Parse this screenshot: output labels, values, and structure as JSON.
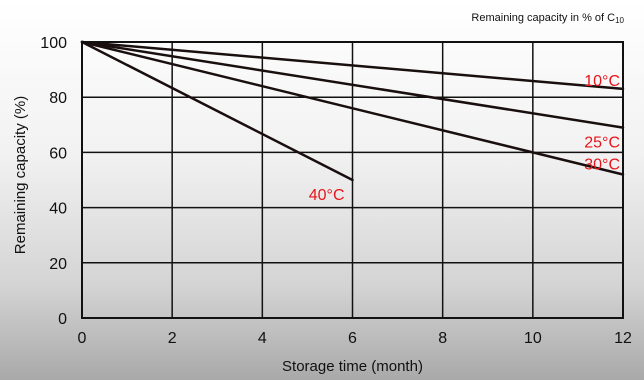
{
  "chart_data": {
    "type": "line",
    "title": "Remaining capacity in % of C10",
    "title_main": "Remaining capacity in % of C",
    "title_subscript": "10",
    "xlabel": "Storage time (month)",
    "ylabel": "Remaining capacity (%)",
    "xlim": [
      0,
      12
    ],
    "ylim": [
      0,
      100
    ],
    "x_ticks": [
      "0",
      "2",
      "4",
      "6",
      "8",
      "10",
      "12"
    ],
    "y_ticks": [
      "0",
      "20",
      "40",
      "60",
      "80",
      "100"
    ],
    "grid": true,
    "label_color": "#e8141b",
    "line_color": "#1a0f0f",
    "series": [
      {
        "name": "10°C",
        "x": [
          0,
          12
        ],
        "y": [
          100,
          83
        ]
      },
      {
        "name": "25°C",
        "x": [
          0,
          12
        ],
        "y": [
          100,
          69
        ]
      },
      {
        "name": "30°C",
        "x": [
          0,
          12
        ],
        "y": [
          100,
          52
        ]
      },
      {
        "name": "40°C",
        "x": [
          0,
          6
        ],
        "y": [
          100,
          50
        ]
      }
    ]
  }
}
